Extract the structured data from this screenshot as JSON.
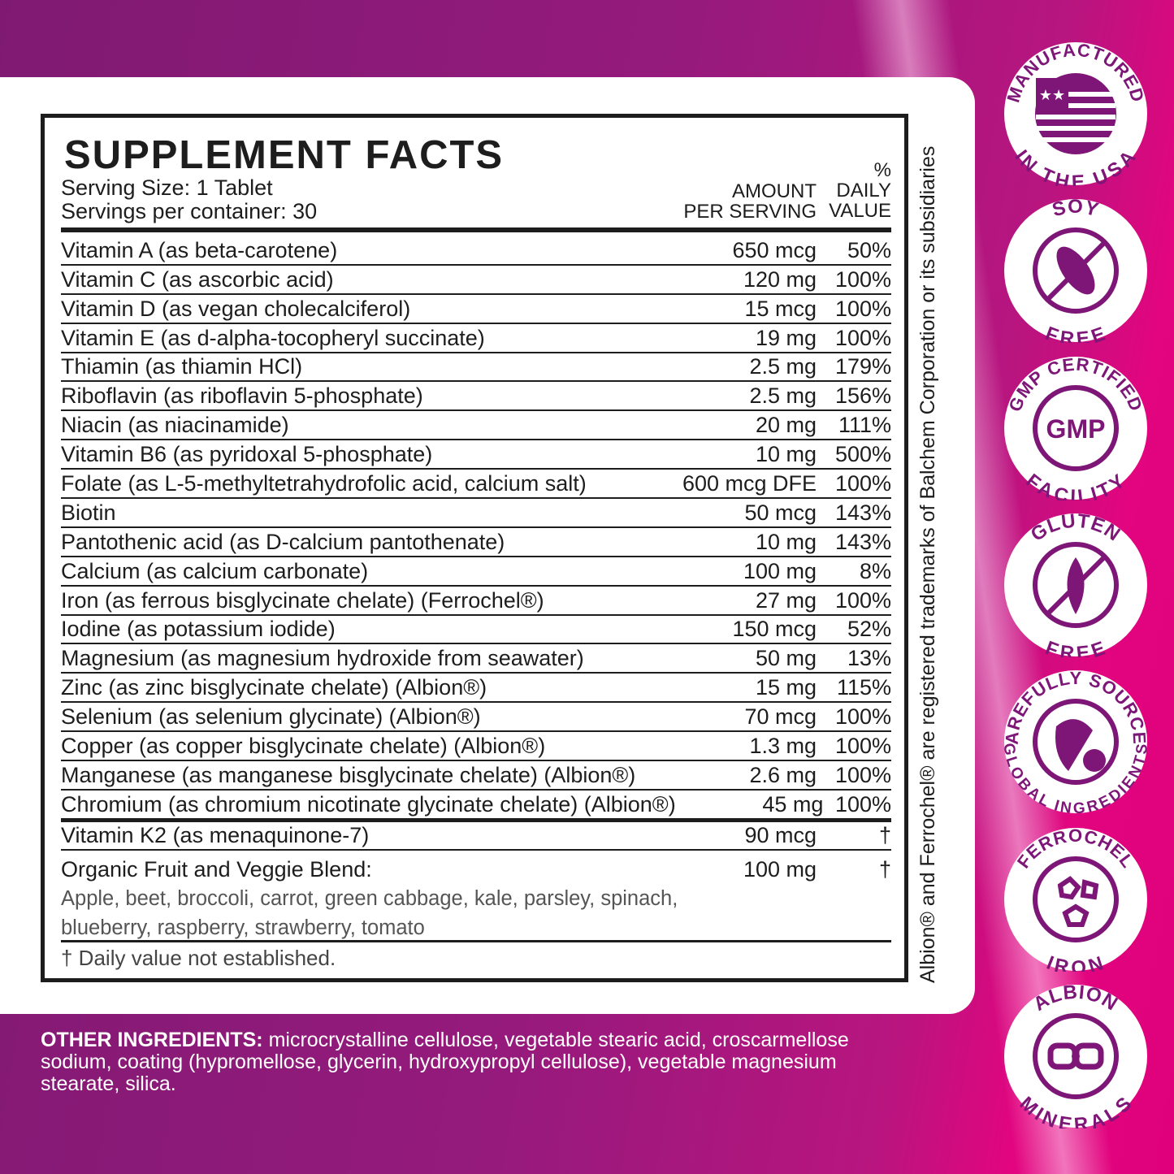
{
  "title": "SUPPLEMENT FACTS",
  "serving_size": "Serving Size: 1 Tablet",
  "servings_per_container": "Servings per container: 30",
  "header_amount": [
    "AMOUNT",
    "PER SERVING"
  ],
  "header_dv": [
    "%",
    "DAILY",
    "VALUE"
  ],
  "rows": [
    {
      "name": "Vitamin A (as beta-carotene)",
      "amount": "650 mcg",
      "dv": "50%"
    },
    {
      "name": "Vitamin C (as ascorbic acid)",
      "amount": "120 mg",
      "dv": "100%"
    },
    {
      "name": "Vitamin D (as vegan cholecalciferol)",
      "amount": "15 mcg",
      "dv": "100%"
    },
    {
      "name": "Vitamin E (as d-alpha-tocopheryl succinate)",
      "amount": "19 mg",
      "dv": "100%"
    },
    {
      "name": "Thiamin (as thiamin HCl)",
      "amount": "2.5 mg",
      "dv": "179%"
    },
    {
      "name": "Riboflavin (as riboflavin 5-phosphate)",
      "amount": "2.5 mg",
      "dv": "156%"
    },
    {
      "name": "Niacin (as niacinamide)",
      "amount": "20 mg",
      "dv": "111%"
    },
    {
      "name": "Vitamin B6 (as pyridoxal 5-phosphate)",
      "amount": "10 mg",
      "dv": "500%"
    },
    {
      "name": "Folate (as L-5-methyltetrahydrofolic acid, calcium salt)",
      "amount": "600 mcg DFE",
      "dv": "100%"
    },
    {
      "name": "Biotin",
      "amount": "50 mcg",
      "dv": "143%"
    },
    {
      "name": "Pantothenic acid (as D-calcium pantothenate)",
      "amount": "10 mg",
      "dv": "143%"
    },
    {
      "name": "Calcium (as calcium carbonate)",
      "amount": "100 mg",
      "dv": "8%"
    },
    {
      "name": "Iron (as ferrous bisglycinate chelate) (Ferrochel®)",
      "amount": "27 mg",
      "dv": "100%"
    },
    {
      "name": "Iodine (as potassium iodide)",
      "amount": "150 mcg",
      "dv": "52%"
    },
    {
      "name": "Magnesium (as magnesium hydroxide from seawater)",
      "amount": "50 mg",
      "dv": "13%"
    },
    {
      "name": "Zinc (as zinc bisglycinate chelate) (Albion®)",
      "amount": "15 mg",
      "dv": "115%"
    },
    {
      "name": "Selenium (as selenium glycinate) (Albion®)",
      "amount": "70 mcg",
      "dv": "100%"
    },
    {
      "name": "Copper (as copper bisglycinate chelate) (Albion®)",
      "amount": "1.3 mg",
      "dv": "100%"
    },
    {
      "name": "Manganese (as manganese bisglycinate chelate) (Albion®)",
      "amount": "2.6 mg",
      "dv": "100%"
    },
    {
      "name": "Chromium (as chromium nicotinate glycinate chelate) (Albion®)",
      "amount": "45 mg",
      "dv": "100%"
    }
  ],
  "k2": {
    "name": "Vitamin K2 (as menaquinone-7)",
    "amount": "90 mcg",
    "dv": "†"
  },
  "blend": {
    "name": "Organic Fruit and Veggie Blend:",
    "amount": "100 mg",
    "dv": "†",
    "ingredients": "Apple, beet, broccoli, carrot, green cabbage, kale, parsley, spinach, blueberry, raspberry, strawberry, tomato"
  },
  "footnote": "† Daily value not established.",
  "trademark": "Albion® and Ferrochel® are registered trademarks of Balchem Corporation or its subsidiaries",
  "other_label": "OTHER INGREDIENTS:",
  "other_text": " microcrystalline cellulose, vegetable stearic acid, croscarmellose sodium, coating (hypromellose, glycerin, hydroxypropyl cellulose), vegetable magnesium stearate, silica.",
  "colors": {
    "badge_purple": "#7d1677",
    "bg_left": "#7f1a72",
    "bg_right": "#e0007c"
  },
  "badges": [
    {
      "top": "MANUFACTURED",
      "bottom": "IN THE USA",
      "icon": "us-flag-icon"
    },
    {
      "top": "SOY",
      "bottom": "FREE",
      "icon": "soy-free-icon"
    },
    {
      "top": "GMP CERTIFIED",
      "bottom": "FACILITY",
      "icon": "gmp-icon",
      "center": "GMP"
    },
    {
      "top": "GLUTEN",
      "bottom": "FREE",
      "icon": "gluten-free-icon"
    },
    {
      "top": "CAREFULLY SOURCED",
      "bottom": "GLOBAL INGREDIENTS",
      "icon": "globe-icon"
    },
    {
      "top": "FERROCHEL",
      "bottom": "IRON",
      "icon": "iron-molecule-icon"
    },
    {
      "top": "ALBION",
      "bottom": "MINERALS",
      "icon": "chain-link-icon"
    }
  ]
}
